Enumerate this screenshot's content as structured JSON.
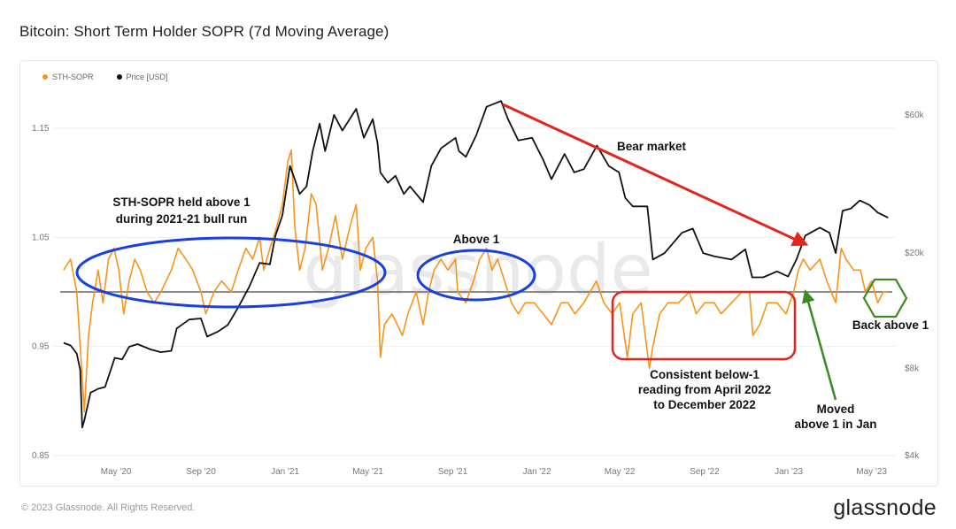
{
  "page": {
    "title": "Bitcoin: Short Term Holder SOPR (7d Moving Average)",
    "copyright": "© 2023 Glassnode. All Rights Reserved.",
    "logo": "glassnode",
    "watermark": "glassnode"
  },
  "chart_data": {
    "type": "line",
    "title": "Bitcoin: Short Term Holder SOPR (7d Moving Average)",
    "legend": [
      {
        "name": "STH-SOPR",
        "color": "#F7931A"
      },
      {
        "name": "Price [USD]",
        "color": "#111111"
      }
    ],
    "legend_position": "top-left",
    "x_ticks": [
      "May '20",
      "Sep '20",
      "Jan '21",
      "May '21",
      "Sep '21",
      "Jan '22",
      "May '22",
      "Sep '22",
      "Jan '23",
      "May '23"
    ],
    "y_left": {
      "label": "",
      "ticks": [
        "0.85",
        "0.95",
        "1.05",
        "1.15"
      ],
      "range": [
        0.85,
        1.18
      ]
    },
    "y_right": {
      "label": "",
      "scale": "log",
      "ticks": [
        "$4k",
        "$8k",
        "$20k",
        "$60k"
      ],
      "range": [
        4000,
        70000
      ]
    },
    "reference_line": {
      "y": 1.0
    },
    "grid": true,
    "series": [
      {
        "name": "STH-SOPR",
        "axis": "left",
        "color": "#F7931A",
        "points": [
          [
            "2020-02-15",
            1.02
          ],
          [
            "2020-02-25",
            1.03
          ],
          [
            "2020-03-05",
            1.0
          ],
          [
            "2020-03-12",
            0.93
          ],
          [
            "2020-03-16",
            0.89
          ],
          [
            "2020-03-22",
            0.96
          ],
          [
            "2020-03-28",
            0.99
          ],
          [
            "2020-04-05",
            1.02
          ],
          [
            "2020-04-12",
            0.99
          ],
          [
            "2020-04-20",
            1.03
          ],
          [
            "2020-04-28",
            1.04
          ],
          [
            "2020-05-05",
            1.02
          ],
          [
            "2020-05-12",
            0.98
          ],
          [
            "2020-05-20",
            1.01
          ],
          [
            "2020-05-28",
            1.03
          ],
          [
            "2020-06-05",
            1.02
          ],
          [
            "2020-06-15",
            1.0
          ],
          [
            "2020-06-25",
            0.99
          ],
          [
            "2020-07-05",
            1.0
          ],
          [
            "2020-07-20",
            1.02
          ],
          [
            "2020-07-30",
            1.04
          ],
          [
            "2020-08-10",
            1.03
          ],
          [
            "2020-08-20",
            1.02
          ],
          [
            "2020-09-01",
            1.0
          ],
          [
            "2020-09-08",
            0.98
          ],
          [
            "2020-09-20",
            1.0
          ],
          [
            "2020-10-01",
            1.01
          ],
          [
            "2020-10-15",
            1.0
          ],
          [
            "2020-10-25",
            1.02
          ],
          [
            "2020-11-05",
            1.04
          ],
          [
            "2020-11-15",
            1.03
          ],
          [
            "2020-11-25",
            1.05
          ],
          [
            "2020-12-01",
            1.02
          ],
          [
            "2020-12-10",
            1.04
          ],
          [
            "2020-12-20",
            1.06
          ],
          [
            "2020-12-28",
            1.08
          ],
          [
            "2021-01-05",
            1.12
          ],
          [
            "2021-01-10",
            1.13
          ],
          [
            "2021-01-15",
            1.06
          ],
          [
            "2021-01-22",
            1.02
          ],
          [
            "2021-01-30",
            1.04
          ],
          [
            "2021-02-08",
            1.09
          ],
          [
            "2021-02-15",
            1.08
          ],
          [
            "2021-02-24",
            1.02
          ],
          [
            "2021-03-05",
            1.04
          ],
          [
            "2021-03-15",
            1.07
          ],
          [
            "2021-03-25",
            1.03
          ],
          [
            "2021-04-05",
            1.06
          ],
          [
            "2021-04-14",
            1.08
          ],
          [
            "2021-04-20",
            1.02
          ],
          [
            "2021-04-28",
            1.04
          ],
          [
            "2021-05-08",
            1.05
          ],
          [
            "2021-05-15",
            1.01
          ],
          [
            "2021-05-19",
            0.94
          ],
          [
            "2021-05-25",
            0.97
          ],
          [
            "2021-06-05",
            0.98
          ],
          [
            "2021-06-20",
            0.96
          ],
          [
            "2021-06-28",
            0.98
          ],
          [
            "2021-07-10",
            1.0
          ],
          [
            "2021-07-20",
            0.97
          ],
          [
            "2021-07-28",
            1.0
          ],
          [
            "2021-08-05",
            1.02
          ],
          [
            "2021-08-15",
            1.03
          ],
          [
            "2021-08-25",
            1.02
          ],
          [
            "2021-09-05",
            1.03
          ],
          [
            "2021-09-08",
            1.0
          ],
          [
            "2021-09-20",
            0.99
          ],
          [
            "2021-10-01",
            1.01
          ],
          [
            "2021-10-10",
            1.03
          ],
          [
            "2021-10-20",
            1.04
          ],
          [
            "2021-10-28",
            1.02
          ],
          [
            "2021-11-05",
            1.03
          ],
          [
            "2021-11-15",
            1.01
          ],
          [
            "2021-11-25",
            0.99
          ],
          [
            "2021-12-05",
            0.98
          ],
          [
            "2021-12-15",
            0.99
          ],
          [
            "2021-12-28",
            0.99
          ],
          [
            "2022-01-10",
            0.98
          ],
          [
            "2022-01-22",
            0.97
          ],
          [
            "2022-02-05",
            0.99
          ],
          [
            "2022-02-15",
            0.99
          ],
          [
            "2022-02-25",
            0.98
          ],
          [
            "2022-03-10",
            0.99
          ],
          [
            "2022-03-28",
            1.01
          ],
          [
            "2022-04-08",
            0.99
          ],
          [
            "2022-04-20",
            0.98
          ],
          [
            "2022-05-01",
            0.99
          ],
          [
            "2022-05-12",
            0.94
          ],
          [
            "2022-05-20",
            0.98
          ],
          [
            "2022-06-01",
            0.99
          ],
          [
            "2022-06-13",
            0.93
          ],
          [
            "2022-06-18",
            0.95
          ],
          [
            "2022-06-28",
            0.98
          ],
          [
            "2022-07-10",
            0.99
          ],
          [
            "2022-07-25",
            0.99
          ],
          [
            "2022-08-10",
            1.0
          ],
          [
            "2022-08-20",
            0.98
          ],
          [
            "2022-09-01",
            0.99
          ],
          [
            "2022-09-15",
            0.99
          ],
          [
            "2022-09-25",
            0.98
          ],
          [
            "2022-10-10",
            0.99
          ],
          [
            "2022-10-25",
            1.0
          ],
          [
            "2022-11-05",
            1.0
          ],
          [
            "2022-11-10",
            0.96
          ],
          [
            "2022-11-20",
            0.97
          ],
          [
            "2022-12-01",
            0.99
          ],
          [
            "2022-12-15",
            0.99
          ],
          [
            "2022-12-28",
            0.98
          ],
          [
            "2023-01-08",
            1.0
          ],
          [
            "2023-01-15",
            1.02
          ],
          [
            "2023-01-22",
            1.03
          ],
          [
            "2023-02-01",
            1.02
          ],
          [
            "2023-02-15",
            1.03
          ],
          [
            "2023-02-25",
            1.01
          ],
          [
            "2023-03-10",
            0.99
          ],
          [
            "2023-03-18",
            1.04
          ],
          [
            "2023-03-25",
            1.03
          ],
          [
            "2023-04-05",
            1.02
          ],
          [
            "2023-04-15",
            1.02
          ],
          [
            "2023-04-22",
            1.0
          ],
          [
            "2023-05-01",
            1.01
          ],
          [
            "2023-05-10",
            0.99
          ],
          [
            "2023-05-18",
            1.0
          ],
          [
            "2023-05-25",
            1.0
          ]
        ]
      },
      {
        "name": "Price [USD]",
        "axis": "right",
        "color": "#111111",
        "points": [
          [
            "2020-02-15",
            9800
          ],
          [
            "2020-02-25",
            9600
          ],
          [
            "2020-03-05",
            9000
          ],
          [
            "2020-03-10",
            7900
          ],
          [
            "2020-03-13",
            5000
          ],
          [
            "2020-03-16",
            5300
          ],
          [
            "2020-03-25",
            6600
          ],
          [
            "2020-04-05",
            6800
          ],
          [
            "2020-04-15",
            6900
          ],
          [
            "2020-04-29",
            8700
          ],
          [
            "2020-05-10",
            8600
          ],
          [
            "2020-05-20",
            9500
          ],
          [
            "2020-06-01",
            9700
          ],
          [
            "2020-06-20",
            9300
          ],
          [
            "2020-07-05",
            9100
          ],
          [
            "2020-07-20",
            9200
          ],
          [
            "2020-07-28",
            11000
          ],
          [
            "2020-08-15",
            11800
          ],
          [
            "2020-09-01",
            11900
          ],
          [
            "2020-09-10",
            10300
          ],
          [
            "2020-09-25",
            10700
          ],
          [
            "2020-10-10",
            11300
          ],
          [
            "2020-10-25",
            13000
          ],
          [
            "2020-11-10",
            15300
          ],
          [
            "2020-11-25",
            18500
          ],
          [
            "2020-12-10",
            18300
          ],
          [
            "2020-12-18",
            23000
          ],
          [
            "2020-12-28",
            27000
          ],
          [
            "2021-01-08",
            40000
          ],
          [
            "2021-01-15",
            36000
          ],
          [
            "2021-01-22",
            32000
          ],
          [
            "2021-02-01",
            34000
          ],
          [
            "2021-02-10",
            45000
          ],
          [
            "2021-02-20",
            56000
          ],
          [
            "2021-02-28",
            45000
          ],
          [
            "2021-03-13",
            60000
          ],
          [
            "2021-03-25",
            53000
          ],
          [
            "2021-04-14",
            63000
          ],
          [
            "2021-04-25",
            50000
          ],
          [
            "2021-05-08",
            58000
          ],
          [
            "2021-05-15",
            48000
          ],
          [
            "2021-05-19",
            38000
          ],
          [
            "2021-05-30",
            35000
          ],
          [
            "2021-06-10",
            37000
          ],
          [
            "2021-06-22",
            32000
          ],
          [
            "2021-07-01",
            34000
          ],
          [
            "2021-07-20",
            30000
          ],
          [
            "2021-08-01",
            40000
          ],
          [
            "2021-08-15",
            46000
          ],
          [
            "2021-09-05",
            50000
          ],
          [
            "2021-09-10",
            45000
          ],
          [
            "2021-09-20",
            43000
          ],
          [
            "2021-10-05",
            51000
          ],
          [
            "2021-10-20",
            64000
          ],
          [
            "2021-11-10",
            67000
          ],
          [
            "2021-11-20",
            58000
          ],
          [
            "2021-12-05",
            49000
          ],
          [
            "2021-12-25",
            50000
          ],
          [
            "2022-01-10",
            42000
          ],
          [
            "2022-01-22",
            36000
          ],
          [
            "2022-02-10",
            44000
          ],
          [
            "2022-02-24",
            38000
          ],
          [
            "2022-03-10",
            39000
          ],
          [
            "2022-03-29",
            47000
          ],
          [
            "2022-04-15",
            40000
          ],
          [
            "2022-04-30",
            38000
          ],
          [
            "2022-05-09",
            31000
          ],
          [
            "2022-05-20",
            29000
          ],
          [
            "2022-06-10",
            29000
          ],
          [
            "2022-06-18",
            19000
          ],
          [
            "2022-07-05",
            20000
          ],
          [
            "2022-07-30",
            23500
          ],
          [
            "2022-08-15",
            24300
          ],
          [
            "2022-08-30",
            20000
          ],
          [
            "2022-09-15",
            19500
          ],
          [
            "2022-10-10",
            19000
          ],
          [
            "2022-10-30",
            20600
          ],
          [
            "2022-11-09",
            16500
          ],
          [
            "2022-11-25",
            16500
          ],
          [
            "2022-12-15",
            17300
          ],
          [
            "2022-12-31",
            16600
          ],
          [
            "2023-01-12",
            19000
          ],
          [
            "2023-01-25",
            23000
          ],
          [
            "2023-02-15",
            24500
          ],
          [
            "2023-03-01",
            23500
          ],
          [
            "2023-03-10",
            20000
          ],
          [
            "2023-03-20",
            28000
          ],
          [
            "2023-04-01",
            28500
          ],
          [
            "2023-04-14",
            30400
          ],
          [
            "2023-04-28",
            29300
          ],
          [
            "2023-05-10",
            27600
          ],
          [
            "2023-05-25",
            26500
          ]
        ]
      }
    ],
    "annotations": [
      {
        "text": [
          "STH-SOPR held above 1",
          "during 2021-21 bull run"
        ]
      },
      {
        "text": [
          "Above 1"
        ]
      },
      {
        "text": [
          "Bear market"
        ]
      },
      {
        "text": [
          "Consistent below-1",
          "reading from April 2022",
          "to December 2022"
        ]
      },
      {
        "text": [
          "Moved",
          "above 1 in Jan"
        ]
      },
      {
        "text": [
          "Back above 1"
        ]
      }
    ]
  }
}
